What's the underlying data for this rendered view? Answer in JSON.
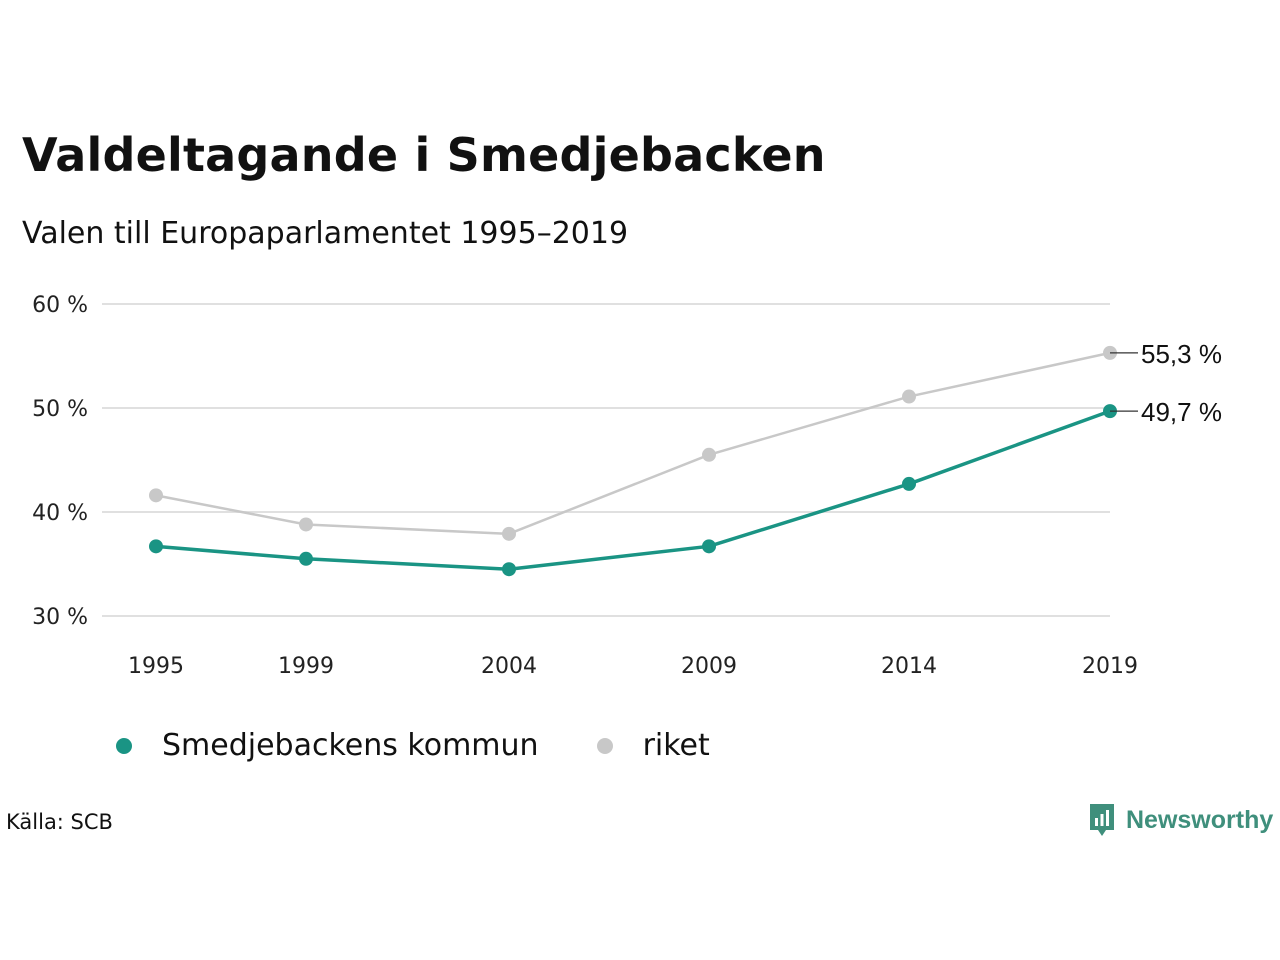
{
  "title": "Valdeltagande i Smedjebacken",
  "subtitle": "Valen till Europaparlamentet 1995–2019",
  "source": "Källa: SCB",
  "brand": {
    "name": "Newsworthy",
    "icon": "newsworthy-logo-icon",
    "color": "#3f8f7c"
  },
  "chart_data": {
    "type": "line",
    "x": [
      "1995",
      "1999",
      "2004",
      "2009",
      "2014",
      "2019"
    ],
    "ylim": [
      30,
      60
    ],
    "yticks": [
      {
        "value": 30,
        "label": "30 %"
      },
      {
        "value": 40,
        "label": "40 %"
      },
      {
        "value": 50,
        "label": "50 %"
      },
      {
        "value": 60,
        "label": "60 %"
      }
    ],
    "grid": true,
    "legend_position": "bottom-left",
    "series": [
      {
        "name": "riket",
        "color": "#c8c8c8",
        "values": [
          41.6,
          38.8,
          37.9,
          45.5,
          51.1,
          55.3
        ],
        "end_label": "55,3 %"
      },
      {
        "name": "Smedjebackens kommun",
        "color": "#1a9484",
        "values": [
          36.7,
          35.5,
          34.5,
          36.7,
          42.7,
          49.7
        ],
        "end_label": "49,7 %"
      }
    ]
  }
}
